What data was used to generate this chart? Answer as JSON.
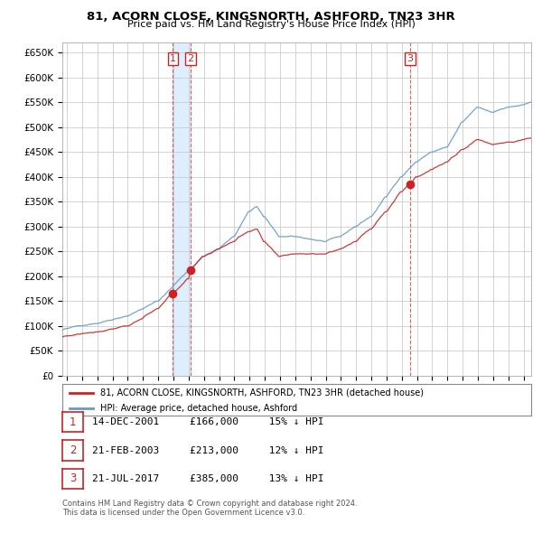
{
  "title": "81, ACORN CLOSE, KINGSNORTH, ASHFORD, TN23 3HR",
  "subtitle": "Price paid vs. HM Land Registry's House Price Index (HPI)",
  "ylabel_ticks": [
    "£0",
    "£50K",
    "£100K",
    "£150K",
    "£200K",
    "£250K",
    "£300K",
    "£350K",
    "£400K",
    "£450K",
    "£500K",
    "£550K",
    "£600K",
    "£650K"
  ],
  "ytick_values": [
    0,
    50000,
    100000,
    150000,
    200000,
    250000,
    300000,
    350000,
    400000,
    450000,
    500000,
    550000,
    600000,
    650000
  ],
  "ylim": [
    0,
    670000
  ],
  "xlim_start": 1994.7,
  "xlim_end": 2025.5,
  "x_ticks": [
    1995,
    1996,
    1997,
    1998,
    1999,
    2000,
    2001,
    2002,
    2003,
    2004,
    2005,
    2006,
    2007,
    2008,
    2009,
    2010,
    2011,
    2012,
    2013,
    2014,
    2015,
    2016,
    2017,
    2018,
    2019,
    2020,
    2021,
    2022,
    2023,
    2024,
    2025
  ],
  "background_color": "#ffffff",
  "grid_color": "#cccccc",
  "hpi_line_color": "#6699cc",
  "price_line_color": "#cc2222",
  "sale_marker_color": "#cc2222",
  "vline_color": "#dd4444",
  "shade_color": "#ddeeff",
  "transaction_label_color": "#cc2222",
  "transactions": [
    {
      "num": 1,
      "date_str": "14-DEC-2001",
      "price": 166000,
      "x_year": 2001.96,
      "pct": "15%",
      "direction": "↓"
    },
    {
      "num": 2,
      "date_str": "21-FEB-2003",
      "price": 213000,
      "x_year": 2003.13,
      "pct": "12%",
      "direction": "↓"
    },
    {
      "num": 3,
      "date_str": "21-JUL-2017",
      "price": 385000,
      "x_year": 2017.55,
      "pct": "13%",
      "direction": "↓"
    }
  ],
  "legend_label_red": "81, ACORN CLOSE, KINGSNORTH, ASHFORD, TN23 3HR (detached house)",
  "legend_label_blue": "HPI: Average price, detached house, Ashford",
  "footer_line1": "Contains HM Land Registry data © Crown copyright and database right 2024.",
  "footer_line2": "This data is licensed under the Open Government Licence v3.0."
}
